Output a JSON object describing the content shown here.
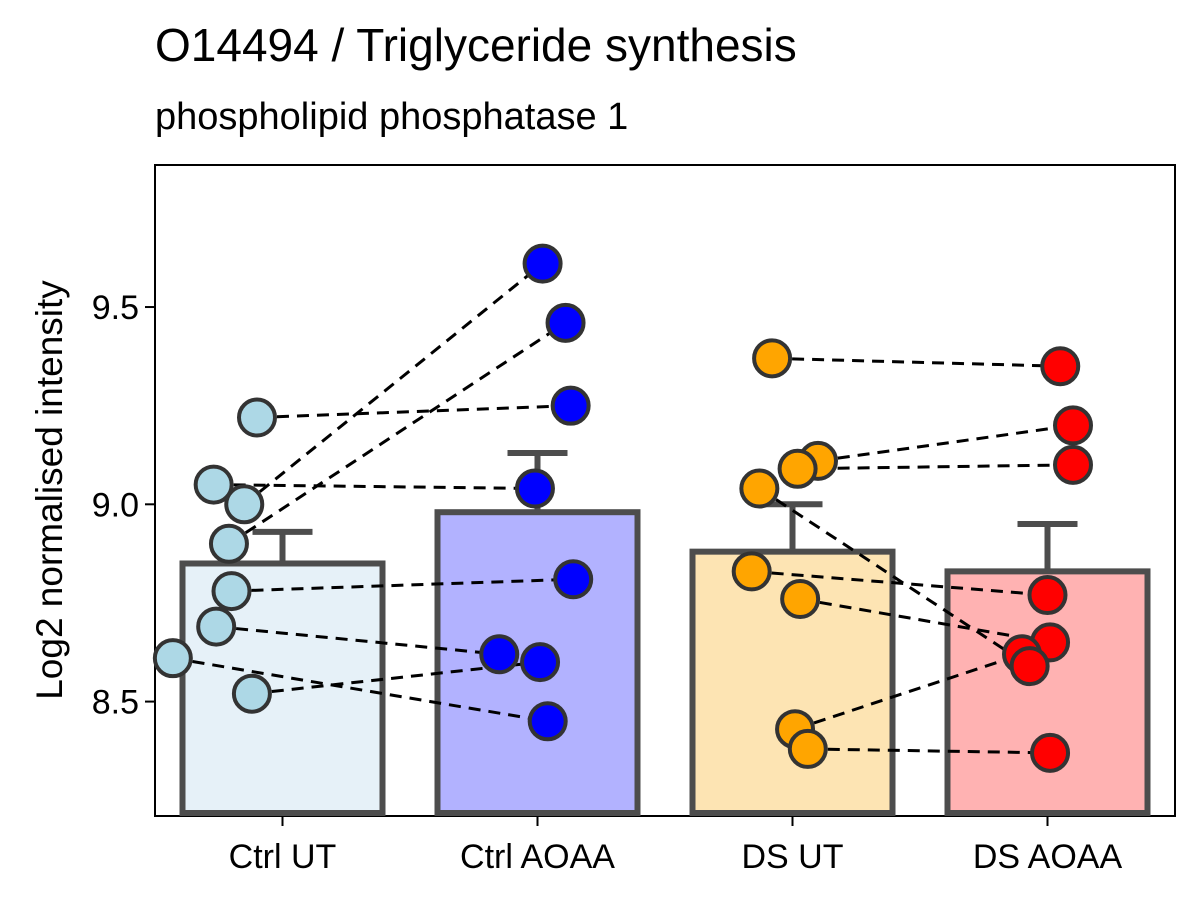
{
  "chart_data": {
    "type": "bar",
    "title": "O14494 / Triglyceride synthesis",
    "subtitle": "phospholipid phosphatase 1",
    "xlabel": "",
    "ylabel": "Log2 normalised intensity",
    "ylim": [
      8.21,
      9.86
    ],
    "yticks": [
      8.5,
      9.0,
      9.5
    ],
    "ytick_labels": [
      "8.5",
      "9.0",
      "9.5"
    ],
    "categories": [
      "Ctrl UT",
      "Ctrl AOAA",
      "DS UT",
      "DS AOAA"
    ],
    "means": [
      8.85,
      8.98,
      8.88,
      8.83
    ],
    "error_upper": [
      8.93,
      9.13,
      9.0,
      8.95
    ],
    "bar_fill": [
      "#e6f1f8",
      "#b2b2ff",
      "#fde4b3",
      "#ffb2b2"
    ],
    "point_fill": [
      "#add8e6",
      "#0000ff",
      "#ffa500",
      "#ff0000"
    ],
    "points": [
      [
        9.22,
        9.05,
        9.0,
        8.9,
        8.78,
        8.69,
        8.61,
        8.52
      ],
      [
        9.61,
        9.46,
        9.25,
        9.04,
        8.81,
        8.62,
        8.6,
        8.45
      ],
      [
        9.37,
        9.11,
        9.09,
        9.04,
        8.83,
        8.76,
        8.43,
        8.38
      ],
      [
        9.35,
        9.2,
        9.1,
        8.77,
        8.65,
        8.62,
        8.59,
        8.37
      ]
    ],
    "point_jitter": [
      [
        -0.1,
        -0.27,
        -0.15,
        -0.21,
        -0.2,
        -0.26,
        -0.43,
        -0.12
      ],
      [
        0.02,
        0.11,
        0.13,
        -0.01,
        0.14,
        -0.15,
        0.01,
        0.04
      ],
      [
        -0.08,
        0.1,
        0.02,
        -0.13,
        -0.16,
        0.03,
        0.01,
        0.06
      ],
      [
        0.05,
        0.1,
        0.1,
        0.0,
        0.01,
        -0.1,
        -0.07,
        0.01
      ]
    ],
    "pairs": [
      [
        [
          0,
          0
        ],
        [
          1,
          2
        ]
      ],
      [
        [
          0,
          1
        ],
        [
          1,
          3
        ]
      ],
      [
        [
          0,
          2
        ],
        [
          1,
          0
        ]
      ],
      [
        [
          0,
          3
        ],
        [
          1,
          1
        ]
      ],
      [
        [
          0,
          4
        ],
        [
          1,
          4
        ]
      ],
      [
        [
          0,
          5
        ],
        [
          1,
          5
        ]
      ],
      [
        [
          0,
          7
        ],
        [
          1,
          6
        ]
      ],
      [
        [
          0,
          6
        ],
        [
          1,
          7
        ]
      ],
      [
        [
          2,
          0
        ],
        [
          3,
          0
        ]
      ],
      [
        [
          2,
          1
        ],
        [
          3,
          1
        ]
      ],
      [
        [
          2,
          2
        ],
        [
          3,
          2
        ]
      ],
      [
        [
          2,
          3
        ],
        [
          3,
          6
        ]
      ],
      [
        [
          2,
          4
        ],
        [
          3,
          3
        ]
      ],
      [
        [
          2,
          5
        ],
        [
          3,
          4
        ]
      ],
      [
        [
          2,
          6
        ],
        [
          3,
          5
        ]
      ],
      [
        [
          2,
          7
        ],
        [
          3,
          7
        ]
      ]
    ],
    "grid": false,
    "legend": "none"
  }
}
